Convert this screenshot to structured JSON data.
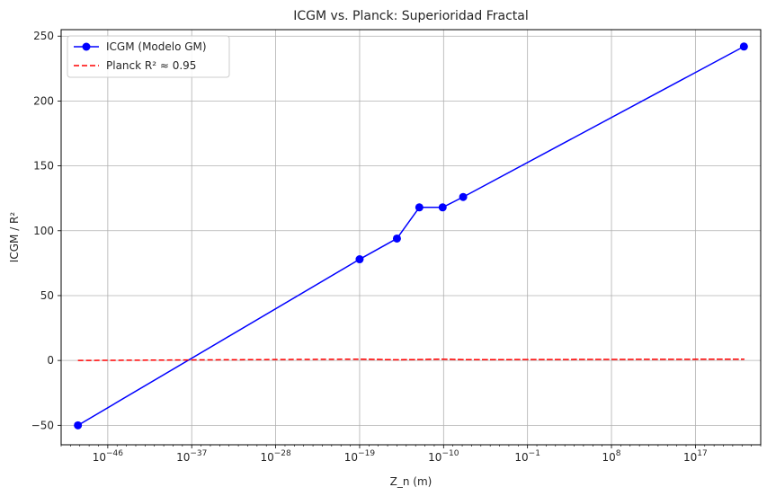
{
  "chart_data": {
    "type": "line",
    "title": "ICGM vs. Planck: Superioridad Fractal",
    "xlabel": "Z_n (m)",
    "ylabel": "ICGM / R²",
    "xscale": "log",
    "x_exp_range": [
      -51,
      24
    ],
    "ylim": [
      -65,
      255
    ],
    "grid": true,
    "legend_position": "top-left",
    "x_ticks": [
      {
        "exp": -46,
        "label": "10^−46"
      },
      {
        "exp": -37,
        "label": "10^−37"
      },
      {
        "exp": -28,
        "label": "10^−28"
      },
      {
        "exp": -19,
        "label": "10^−19"
      },
      {
        "exp": -10,
        "label": "10^−10"
      },
      {
        "exp": -1,
        "label": "10^−1"
      },
      {
        "exp": 8,
        "label": "10^8"
      },
      {
        "exp": 17,
        "label": "10^17"
      }
    ],
    "y_ticks": [
      -50,
      0,
      50,
      100,
      150,
      200,
      250
    ],
    "series": [
      {
        "name": "ICGM (Modelo GM)",
        "color": "#0000ff",
        "style": "solid",
        "marker": "circle",
        "x_exp": [
          -49.2,
          -19.0,
          -15.0,
          -12.6,
          -10.1,
          -7.9,
          22.2
        ],
        "y": [
          -50,
          78,
          94,
          118,
          118,
          126,
          242
        ],
        "path_order": [
          0,
          1,
          2,
          3,
          4,
          5,
          6,
          5,
          4,
          3,
          2,
          1
        ]
      },
      {
        "name": "Planck R² ≈ 0.95",
        "color": "#ff0000",
        "style": "dashed",
        "marker": "none",
        "x_exp": [
          -49.2,
          -19.0,
          -15.0,
          -12.6,
          -10.1,
          -7.9,
          22.2
        ],
        "y": [
          0.0,
          1.0,
          0.5,
          0.7,
          1.0,
          0.6,
          1.0
        ],
        "path_order": [
          0,
          1,
          2,
          3,
          4,
          5,
          6,
          5,
          4,
          3,
          2,
          1
        ]
      }
    ]
  }
}
